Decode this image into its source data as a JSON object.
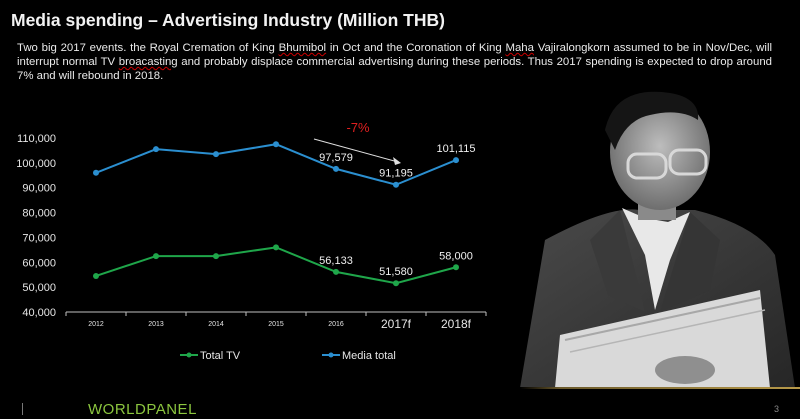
{
  "slide": {
    "title": "Media spending – Advertising Industry (Million THB)",
    "description_parts": [
      "Two big 2017 events. the Royal Cremation of King ",
      "Bhumibol",
      " in Oct and the Coronation of King ",
      "Maha",
      " Vajiralongkorn assumed to be in Nov/Dec, will interrupt normal TV ",
      "broacasting",
      " and probably displace commercial advertising during these periods. Thus 2017 spending is expected to drop around 7% and will rebound in 2018."
    ],
    "footer": {
      "logo": "WORLDPANEL",
      "page_number": "3"
    },
    "photo_alt": "Black-and-white photo of a man in glasses and suit holding papers"
  },
  "colors": {
    "background": "#000000",
    "total_tv": "#1fa64a",
    "media_total": "#2b8fd0",
    "annotation_red": "#e02020",
    "logo_green": "#8cc63f"
  },
  "chart_data": {
    "type": "line",
    "title": "",
    "xlabel": "",
    "ylabel": "",
    "categories": [
      "2012",
      "2013",
      "2014",
      "2015",
      "2016",
      "2017f",
      "2018f"
    ],
    "ylim": [
      40000,
      110000
    ],
    "yticks": [
      "40,000",
      "50,000",
      "60,000",
      "70,000",
      "80,000",
      "90,000",
      "100,000",
      "110,000"
    ],
    "ytick_values": [
      40000,
      50000,
      60000,
      70000,
      80000,
      90000,
      100000,
      110000
    ],
    "grid": false,
    "legend": "bottom",
    "series": [
      {
        "name": "Total TV",
        "color": "#1fa64a",
        "values": [
          54500,
          62500,
          62500,
          66000,
          56133,
          51580,
          58000
        ],
        "labels": [
          null,
          null,
          null,
          null,
          "56,133",
          "51,580",
          "58,000"
        ]
      },
      {
        "name": "Media total",
        "color": "#2b8fd0",
        "values": [
          96000,
          105500,
          103500,
          107500,
          97579,
          91195,
          101115
        ],
        "labels": [
          null,
          null,
          null,
          null,
          "97,579",
          "91,195",
          "101,115"
        ]
      }
    ],
    "annotations": [
      {
        "text": "-7%",
        "color": "#e02020",
        "from_category": "2016",
        "to_category": "2017f",
        "arrow": true
      }
    ]
  }
}
